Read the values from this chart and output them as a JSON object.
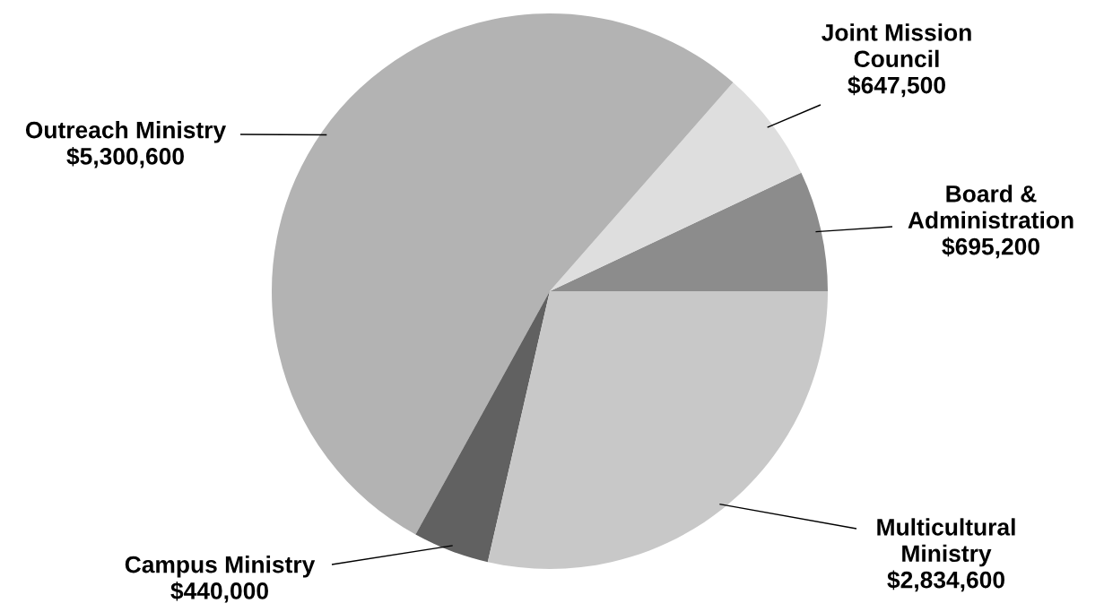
{
  "chart_data": {
    "type": "pie",
    "categories": [
      "Board & Administration",
      "Joint Mission Council",
      "Outreach Ministry",
      "Campus Ministry",
      "Multicultural Ministry"
    ],
    "values": [
      695200,
      647500,
      5300600,
      440000,
      2834600
    ],
    "value_labels": [
      "$695,200",
      "$647,500",
      "$5,300,600",
      "$440,000",
      "$2,834,600"
    ],
    "colors": [
      "#8c8c8c",
      "#dedede",
      "#b3b3b3",
      "#616161",
      "#c8c8c8"
    ],
    "legend": false
  }
}
